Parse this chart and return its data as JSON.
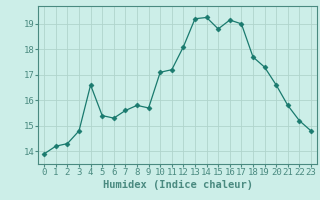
{
  "x": [
    0,
    1,
    2,
    3,
    4,
    5,
    6,
    7,
    8,
    9,
    10,
    11,
    12,
    13,
    14,
    15,
    16,
    17,
    18,
    19,
    20,
    21,
    22,
    23
  ],
  "y": [
    13.9,
    14.2,
    14.3,
    14.8,
    16.6,
    15.4,
    15.3,
    15.6,
    15.8,
    15.7,
    17.1,
    17.2,
    18.1,
    19.2,
    19.25,
    18.8,
    19.15,
    19.0,
    17.7,
    17.3,
    16.6,
    15.8,
    15.2,
    14.8
  ],
  "line_color": "#1a7a6e",
  "marker": "D",
  "marker_size": 2.5,
  "bg_color": "#cceee8",
  "grid_color_major": "#b0d4cc",
  "grid_color_minor": "#c4e8e2",
  "xlabel": "Humidex (Indice chaleur)",
  "ylim": [
    13.5,
    19.7
  ],
  "xlim": [
    -0.5,
    23.5
  ],
  "yticks": [
    14,
    15,
    16,
    17,
    18,
    19
  ],
  "xticks": [
    0,
    1,
    2,
    3,
    4,
    5,
    6,
    7,
    8,
    9,
    10,
    11,
    12,
    13,
    14,
    15,
    16,
    17,
    18,
    19,
    20,
    21,
    22,
    23
  ],
  "label_fontsize": 7.5,
  "tick_fontsize": 6.5,
  "spine_color": "#4a8a80"
}
